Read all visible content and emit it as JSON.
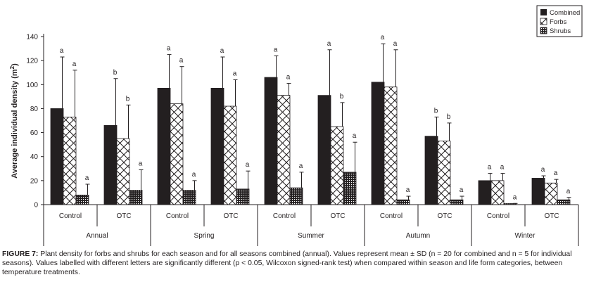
{
  "chart_data": {
    "type": "bar",
    "ylabel": "Average individual density (m²)",
    "ylabel_main": "Average individual density (m",
    "ylabel_sup": "2",
    "ylabel_end": ")",
    "ylim": [
      0,
      140
    ],
    "yticks": [
      0,
      20,
      40,
      60,
      80,
      100,
      120,
      140
    ],
    "legend_position": "top-right",
    "seasons": [
      "Annual",
      "Spring",
      "Summer",
      "Autumn",
      "Winter"
    ],
    "treatments": [
      "Control",
      "OTC"
    ],
    "series": [
      {
        "name": "Combined",
        "pattern": "solid"
      },
      {
        "name": "Forbs",
        "pattern": "crosshatch"
      },
      {
        "name": "Shrubs",
        "pattern": "grid"
      }
    ],
    "groups": [
      {
        "season": "Annual",
        "treatment": "Control",
        "means": [
          80,
          73,
          8
        ],
        "sd": [
          43,
          39,
          9
        ],
        "letters": [
          "a",
          "a",
          "a"
        ]
      },
      {
        "season": "Annual",
        "treatment": "OTC",
        "means": [
          66,
          55,
          12
        ],
        "sd": [
          39,
          28,
          17
        ],
        "letters": [
          "b",
          "b",
          "a"
        ]
      },
      {
        "season": "Spring",
        "treatment": "Control",
        "means": [
          97,
          84,
          12
        ],
        "sd": [
          28,
          31,
          8
        ],
        "letters": [
          "a",
          "a",
          "a"
        ]
      },
      {
        "season": "Spring",
        "treatment": "OTC",
        "means": [
          97,
          82,
          13
        ],
        "sd": [
          26,
          22,
          15
        ],
        "letters": [
          "a",
          "a",
          "a"
        ]
      },
      {
        "season": "Summer",
        "treatment": "Control",
        "means": [
          106,
          91,
          14
        ],
        "sd": [
          18,
          10,
          13
        ],
        "letters": [
          "a",
          "a",
          "a"
        ]
      },
      {
        "season": "Summer",
        "treatment": "OTC",
        "means": [
          91,
          65,
          27
        ],
        "sd": [
          38,
          20,
          25
        ],
        "letters": [
          "a",
          "b",
          "a"
        ]
      },
      {
        "season": "Autumn",
        "treatment": "Control",
        "means": [
          102,
          98,
          4
        ],
        "sd": [
          32,
          31,
          3
        ],
        "letters": [
          "a",
          "a",
          "a"
        ]
      },
      {
        "season": "Autumn",
        "treatment": "OTC",
        "means": [
          57,
          53,
          4
        ],
        "sd": [
          16,
          15,
          3
        ],
        "letters": [
          "b",
          "b",
          "a"
        ]
      },
      {
        "season": "Winter",
        "treatment": "Control",
        "means": [
          20,
          20,
          1
        ],
        "sd": [
          6,
          6,
          0
        ],
        "letters": [
          "a",
          "a",
          "a"
        ]
      },
      {
        "season": "Winter",
        "treatment": "OTC",
        "means": [
          22,
          18,
          4
        ],
        "sd": [
          2,
          3,
          2
        ],
        "letters": [
          "a",
          "a",
          "a"
        ]
      }
    ]
  },
  "caption": {
    "label": "FIGURE 7:",
    "text": " Plant density for forbs and shrubs for each season and for all seasons combined (annual). Values represent mean ± SD (n = 20 for combined and n = 5 for individual seasons). Values labelled with different letters are significantly different (p < 0.05, Wilcoxon signed-rank test) when compared within season and life form categories, between temperature treatments."
  },
  "colors": {
    "bar_solid": "#231f20",
    "axis": "#231f20",
    "text": "#231f20"
  }
}
